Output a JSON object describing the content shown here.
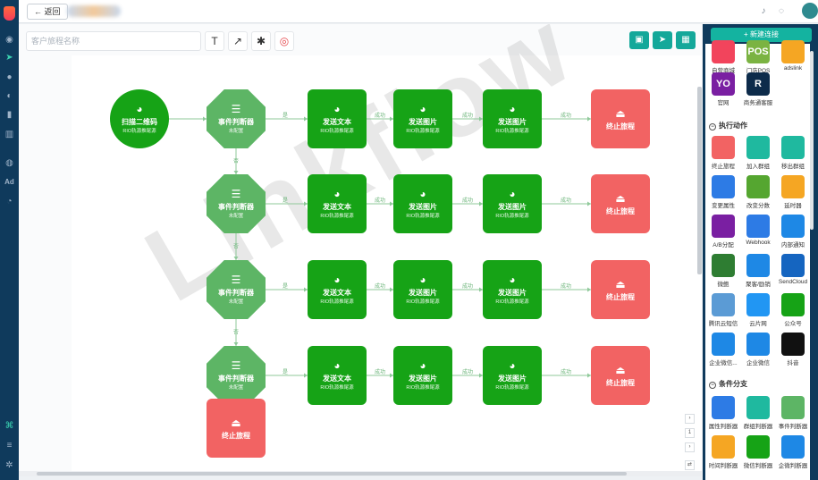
{
  "topbar": {
    "back_label": "返回"
  },
  "toolbar": {
    "name_placeholder": "客户旅程名称"
  },
  "watermark": "Linkflow",
  "canvas": {
    "entry": {
      "title": "扫描二维码",
      "sub": "RIO轨源推尾源"
    },
    "judge": {
      "title": "事件判断器",
      "sub": "未配置"
    },
    "send_text": {
      "title": "发送文本",
      "sub": "RIO轨源推尾源"
    },
    "send_image": {
      "title": "发送图片",
      "sub": "RIO轨源推尾源"
    },
    "end": {
      "title": "终止旅程"
    },
    "edge_yes": "是",
    "edge_no": "否",
    "edge_success": "成功"
  },
  "panel": {
    "new_connection": "+ 新建连接",
    "connectors": [
      {
        "label": "自营商城",
        "color": "#f2445c",
        "icon": "shop-icon"
      },
      {
        "label": "门店POS",
        "color": "#7bb342",
        "icon": "pos-icon",
        "text": "POS"
      },
      {
        "label": "adslink",
        "color": "#f5a623",
        "icon": "link-icon"
      },
      {
        "label": "官网",
        "color": "#7a1fa2",
        "icon": "website-icon",
        "text": "YO"
      },
      {
        "label": "商务通客服",
        "color": "#0d2b4a",
        "icon": "service-icon",
        "text": "R"
      }
    ],
    "actions_title": "执行动作",
    "actions": [
      {
        "label": "终止旅程",
        "color": "#f26363",
        "icon": "eject-icon"
      },
      {
        "label": "加入群组",
        "color": "#1fb99f",
        "icon": "user-add-icon"
      },
      {
        "label": "移出群组",
        "color": "#1fb99f",
        "icon": "user-remove-icon"
      },
      {
        "label": "变更属性",
        "color": "#2d7be5",
        "icon": "edit-icon"
      },
      {
        "label": "改变分数",
        "color": "#55a630",
        "icon": "trophy-icon"
      },
      {
        "label": "延时器",
        "color": "#f5a623",
        "icon": "hourglass-icon"
      },
      {
        "label": "A/B分配",
        "color": "#7a1fa2",
        "icon": "split-icon"
      },
      {
        "label": "Webhook",
        "color": "#2d7be5",
        "icon": "webhook-icon"
      },
      {
        "label": "内部通知",
        "color": "#1e88e5",
        "icon": "bell-icon"
      },
      {
        "label": "微鲍",
        "color": "#2e7d32",
        "icon": "bug-icon"
      },
      {
        "label": "聚客/励销",
        "color": "#1e88e5",
        "icon": "k-icon"
      },
      {
        "label": "SendCloud",
        "color": "#1565c0",
        "icon": "sendcloud-icon"
      },
      {
        "label": "腾讯云短信",
        "color": "#5b9bd5",
        "icon": "cloud-icon"
      },
      {
        "label": "云片网",
        "color": "#2196f3",
        "icon": "cloud-chain-icon"
      },
      {
        "label": "公众号",
        "color": "#16a316",
        "icon": "wechat-icon"
      },
      {
        "label": "企业微信...",
        "color": "#1e88e5",
        "icon": "wecom-icon"
      },
      {
        "label": "企业微信",
        "color": "#1e88e5",
        "icon": "wecom-icon"
      },
      {
        "label": "抖音",
        "color": "#111111",
        "icon": "tiktok-icon"
      }
    ],
    "branches_title": "条件分支",
    "branches": [
      {
        "label": "属性判断器",
        "color": "#2d7be5",
        "icon": "edit-icon"
      },
      {
        "label": "群组判断器",
        "color": "#1fb99f",
        "icon": "group-icon"
      },
      {
        "label": "事件判断器",
        "color": "#5db565",
        "icon": "list-icon"
      },
      {
        "label": "时间判断器",
        "color": "#f5a623",
        "icon": "clock-icon"
      },
      {
        "label": "微信判断器",
        "color": "#16a316",
        "icon": "wechat-icon"
      },
      {
        "label": "企微判断器",
        "color": "#1e88e5",
        "icon": "wecom-icon"
      }
    ]
  }
}
